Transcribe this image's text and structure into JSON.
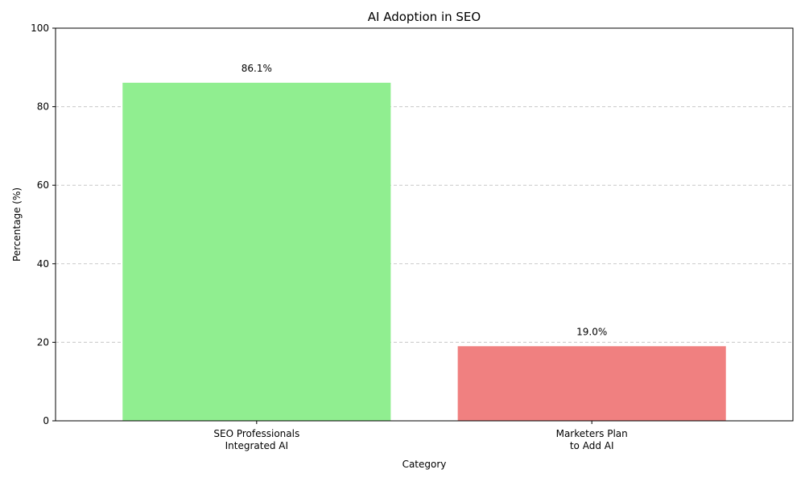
{
  "chart_data": {
    "type": "bar",
    "title": "AI Adoption in SEO",
    "xlabel": "Category",
    "ylabel": "Percentage (%)",
    "categories": [
      [
        "SEO Professionals",
        "Integrated AI"
      ],
      [
        "Marketers Plan",
        "to Add AI"
      ]
    ],
    "values": [
      86.1,
      19.0
    ],
    "data_labels": [
      "86.1%",
      "19.0%"
    ],
    "colors": [
      "#90ee90",
      "#f08080"
    ],
    "ylim": [
      0,
      100
    ],
    "yticks": [
      0,
      20,
      40,
      60,
      80,
      100
    ],
    "grid": "horizontal-dashed",
    "grid_color": "#c8c8c8"
  }
}
